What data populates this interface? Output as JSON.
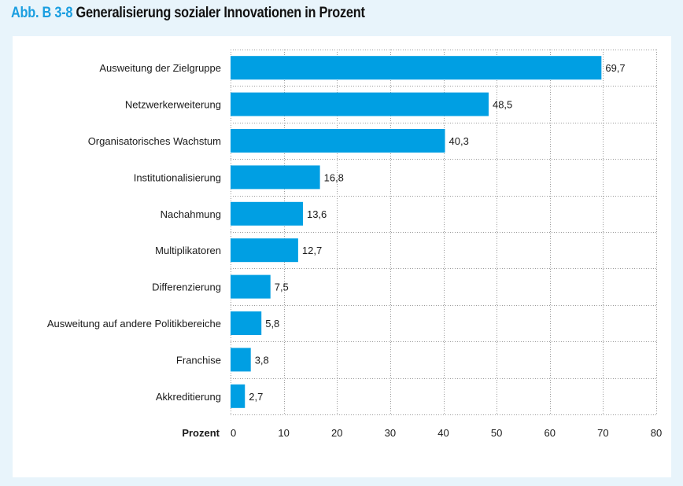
{
  "header": {
    "figure_prefix": "Abb. B 3-8",
    "title": "Generalisierung sozialer Innovationen in Prozent"
  },
  "colors": {
    "accent": "#1a9ee0",
    "bar": "#009fe3",
    "background": "#e8f4fb"
  },
  "chart_data": {
    "type": "bar",
    "orientation": "horizontal",
    "title": "Generalisierung sozialer Innovationen in Prozent",
    "categories": [
      "Ausweitung der Zielgruppe",
      "Netzwerkerweiterung",
      "Organisatorisches Wachstum",
      "Institutionalisierung",
      "Nachahmung",
      "Multiplikatoren",
      "Differenzierung",
      "Ausweitung auf andere Politikbereiche",
      "Franchise",
      "Akkreditierung"
    ],
    "values": [
      69.7,
      48.5,
      40.3,
      16.8,
      13.6,
      12.7,
      7.5,
      5.8,
      3.8,
      2.7
    ],
    "value_labels": [
      "69,7",
      "48,5",
      "40,3",
      "16,8",
      "13,6",
      "12,7",
      "7,5",
      "5,8",
      "3,8",
      "2,7"
    ],
    "xlabel": "Prozent",
    "ylabel": "",
    "xlim": [
      0,
      80
    ],
    "xticks": [
      0,
      10,
      20,
      30,
      40,
      50,
      60,
      70,
      80
    ],
    "xtick_labels": [
      "0",
      "10",
      "20",
      "30",
      "40",
      "50",
      "60",
      "70",
      "80"
    ],
    "grid": true,
    "grid_style": "dotted",
    "legend": "none"
  }
}
